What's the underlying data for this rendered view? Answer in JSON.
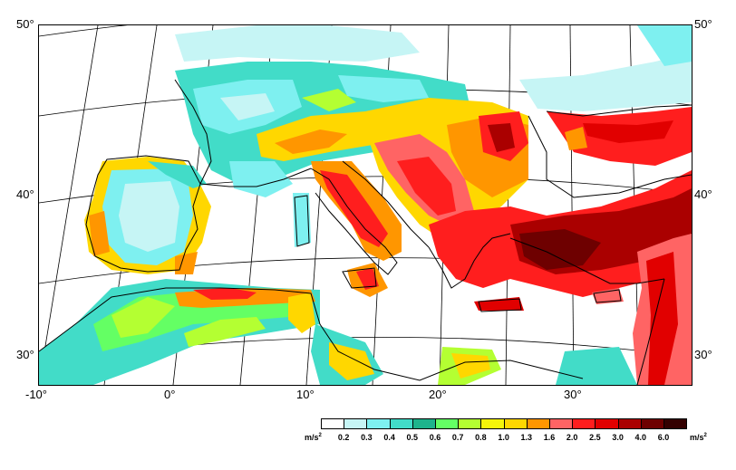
{
  "axes": {
    "lat_left": [
      "50°",
      "40°",
      "30°"
    ],
    "lat_right": [
      "50°",
      "40°",
      "30°"
    ],
    "lon_bottom": [
      "-10°",
      "0°",
      "10°",
      "20°",
      "30°"
    ]
  },
  "legend": {
    "unit_base": "m/s",
    "unit_exp": "2",
    "labels": [
      "0.2",
      "0.3",
      "0.4",
      "0.5",
      "0.6",
      "0.7",
      "0.8",
      "1.0",
      "1.3",
      "1.6",
      "2.0",
      "2.5",
      "3.0",
      "4.0",
      "6.0"
    ],
    "colors": [
      "#ffffff",
      "#c6f5f5",
      "#7ef0f0",
      "#42dcc8",
      "#1eb48c",
      "#64ff64",
      "#b4ff32",
      "#f5f50a",
      "#ffd700",
      "#ff9600",
      "#ff6464",
      "#ff1e1e",
      "#e10000",
      "#aa0000",
      "#6e0000",
      "#330000"
    ]
  }
}
